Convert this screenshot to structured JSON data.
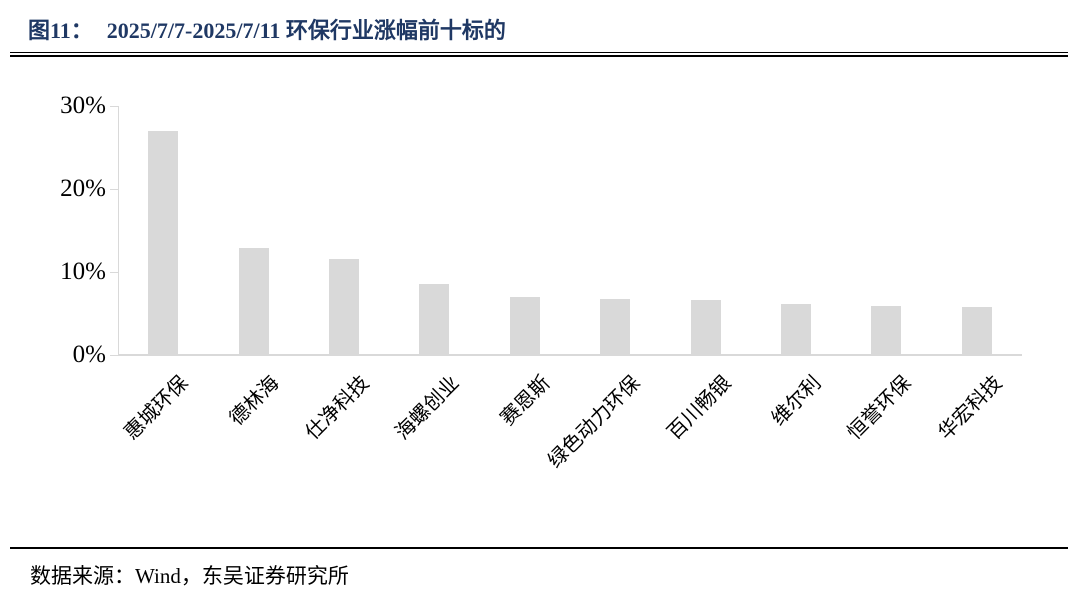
{
  "header": {
    "figure_label": "图11：",
    "figure_title": "2025/7/7-2025/7/11 环保行业涨幅前十标的"
  },
  "footer": {
    "source_text": "数据来源：Wind，东吴证券研究所"
  },
  "colors": {
    "title_text": "#1F3864",
    "bar_fill": "#D9D9D9",
    "axis_line": "#D9D9D9",
    "rule_line": "#000000",
    "label_text": "#000000"
  },
  "chart_data": {
    "type": "bar",
    "title": "2025/7/7-2025/7/11 环保行业涨幅前十标的",
    "categories": [
      "惠城环保",
      "德林海",
      "仕净科技",
      "海螺创业",
      "赛恩斯",
      "绿色动力环保",
      "百川畅银",
      "维尔利",
      "恒誉环保",
      "华宏科技"
    ],
    "values": [
      27.0,
      12.9,
      11.6,
      8.5,
      7.0,
      6.7,
      6.6,
      6.2,
      5.9,
      5.8
    ],
    "unit": "%",
    "xlabel": "",
    "ylabel": "",
    "ylim": [
      0,
      30
    ],
    "yticks": [
      {
        "value": 0,
        "label": "0%"
      },
      {
        "value": 10,
        "label": "10%"
      },
      {
        "value": 20,
        "label": "20%"
      },
      {
        "value": 30,
        "label": "30%"
      }
    ],
    "grid": false,
    "legend": "none",
    "bar_orientation": "vertical",
    "x_tick_label_rotation_deg": -45
  }
}
